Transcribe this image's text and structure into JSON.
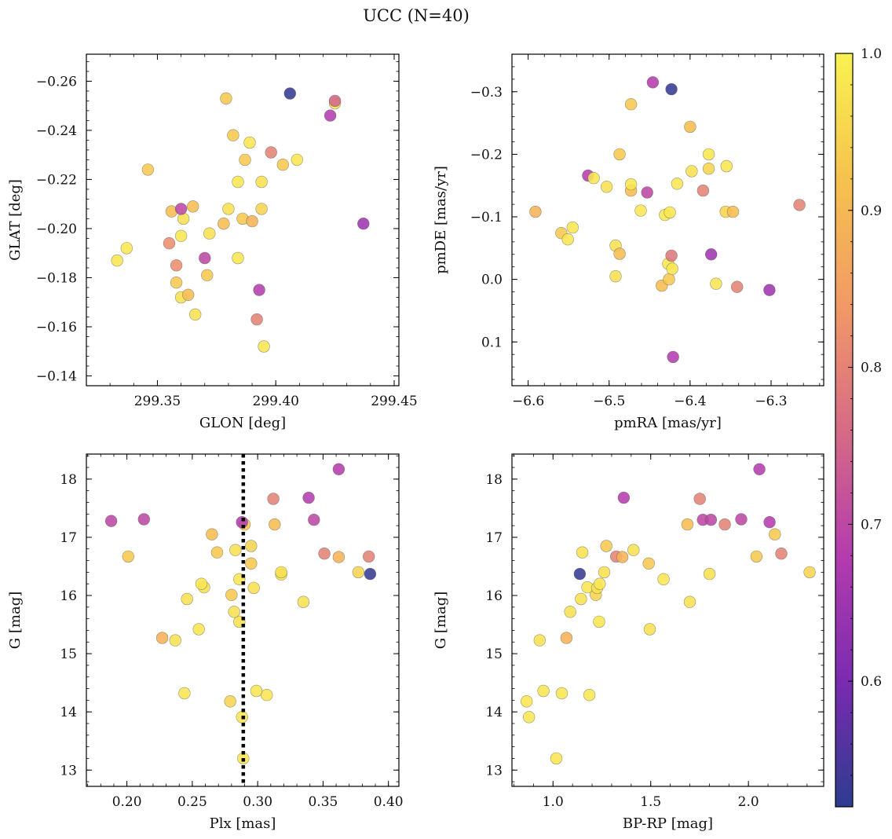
{
  "figure": {
    "title": "UCC (N=40)"
  },
  "colorbar": {
    "range": [
      0.52,
      1.0
    ],
    "ticks": [
      0.6,
      0.7,
      0.8,
      0.9,
      1.0
    ],
    "tick_labels": [
      "0.6",
      "0.7",
      "0.8",
      "0.9",
      "1.0"
    ],
    "stops": [
      "#2d3c8f",
      "#7a2bb0",
      "#b43cae",
      "#d66b85",
      "#f29a66",
      "#f6c24e",
      "#f8f252"
    ]
  },
  "chart_data": [
    {
      "type": "scatter",
      "xlabel": "GLON [deg]",
      "ylabel": "GLAT [deg]",
      "xlim": [
        299.32,
        299.452
      ],
      "ylim": [
        -0.271,
        -0.136
      ],
      "xticks": [
        299.35,
        299.4,
        299.45
      ],
      "xtick_labels": [
        "299.35",
        "299.40",
        "299.45"
      ],
      "yticks": [
        -0.26,
        -0.24,
        -0.22,
        -0.2,
        -0.18,
        -0.16,
        -0.14
      ],
      "ytick_labels": [
        "−0.26",
        "−0.24",
        "−0.22",
        "−0.20",
        "−0.18",
        "−0.16",
        "−0.14"
      ],
      "points": [
        {
          "x": 299.333,
          "y": -0.187,
          "c": 0.98
        },
        {
          "x": 299.337,
          "y": -0.192,
          "c": 0.98
        },
        {
          "x": 299.346,
          "y": -0.224,
          "c": 0.93
        },
        {
          "x": 299.355,
          "y": -0.194,
          "c": 0.82
        },
        {
          "x": 299.356,
          "y": -0.207,
          "c": 0.91
        },
        {
          "x": 299.358,
          "y": -0.178,
          "c": 0.93
        },
        {
          "x": 299.358,
          "y": -0.185,
          "c": 0.82
        },
        {
          "x": 299.36,
          "y": -0.172,
          "c": 0.97
        },
        {
          "x": 299.36,
          "y": -0.197,
          "c": 0.98
        },
        {
          "x": 299.361,
          "y": -0.204,
          "c": 0.97
        },
        {
          "x": 299.36,
          "y": -0.208,
          "c": 0.7
        },
        {
          "x": 299.363,
          "y": -0.173,
          "c": 0.91
        },
        {
          "x": 299.365,
          "y": -0.209,
          "c": 0.91
        },
        {
          "x": 299.366,
          "y": -0.165,
          "c": 0.97
        },
        {
          "x": 299.37,
          "y": -0.188,
          "c": 0.7
        },
        {
          "x": 299.371,
          "y": -0.181,
          "c": 0.93
        },
        {
          "x": 299.372,
          "y": -0.198,
          "c": 0.97
        },
        {
          "x": 299.378,
          "y": -0.202,
          "c": 0.91
        },
        {
          "x": 299.379,
          "y": -0.253,
          "c": 0.93
        },
        {
          "x": 299.38,
          "y": -0.208,
          "c": 0.97
        },
        {
          "x": 299.382,
          "y": -0.238,
          "c": 0.93
        },
        {
          "x": 299.384,
          "y": -0.188,
          "c": 0.98
        },
        {
          "x": 299.384,
          "y": -0.219,
          "c": 0.98
        },
        {
          "x": 299.386,
          "y": -0.204,
          "c": 0.93
        },
        {
          "x": 299.387,
          "y": -0.228,
          "c": 0.93
        },
        {
          "x": 299.389,
          "y": -0.235,
          "c": 0.98
        },
        {
          "x": 299.39,
          "y": -0.203,
          "c": 0.89
        },
        {
          "x": 299.392,
          "y": -0.163,
          "c": 0.8
        },
        {
          "x": 299.393,
          "y": -0.175,
          "c": 0.68
        },
        {
          "x": 299.394,
          "y": -0.208,
          "c": 0.95
        },
        {
          "x": 299.394,
          "y": -0.219,
          "c": 0.97
        },
        {
          "x": 299.395,
          "y": -0.152,
          "c": 0.98
        },
        {
          "x": 299.398,
          "y": -0.231,
          "c": 0.8
        },
        {
          "x": 299.403,
          "y": -0.226,
          "c": 0.93
        },
        {
          "x": 299.406,
          "y": -0.255,
          "c": 0.53
        },
        {
          "x": 299.409,
          "y": -0.228,
          "c": 0.98
        },
        {
          "x": 299.423,
          "y": -0.246,
          "c": 0.68
        },
        {
          "x": 299.425,
          "y": -0.251,
          "c": 0.98
        },
        {
          "x": 299.425,
          "y": -0.252,
          "c": 0.75
        },
        {
          "x": 299.437,
          "y": -0.202,
          "c": 0.65
        }
      ]
    },
    {
      "type": "scatter",
      "xlabel": "pmRA [mas/yr]",
      "ylabel": "pmDE [mas/yr]",
      "xlim": [
        -6.62,
        -6.235
      ],
      "ylim": [
        -0.36,
        0.17
      ],
      "xticks": [
        -6.6,
        -6.5,
        -6.4,
        -6.3
      ],
      "xtick_labels": [
        "−6.6",
        "−6.5",
        "−6.4",
        "−6.3"
      ],
      "yticks": [
        -0.3,
        -0.2,
        -0.1,
        0.0,
        0.1
      ],
      "ytick_labels": [
        "−0.3",
        "−0.2",
        "−0.1",
        "0.0",
        "0.1"
      ],
      "points": [
        {
          "x": -6.591,
          "y": -0.108,
          "c": 0.89
        },
        {
          "x": -6.559,
          "y": -0.074,
          "c": 0.93
        },
        {
          "x": -6.551,
          "y": -0.064,
          "c": 0.98
        },
        {
          "x": -6.545,
          "y": -0.083,
          "c": 0.98
        },
        {
          "x": -6.526,
          "y": -0.166,
          "c": 0.68
        },
        {
          "x": -6.519,
          "y": -0.162,
          "c": 0.98
        },
        {
          "x": -6.503,
          "y": -0.148,
          "c": 0.97
        },
        {
          "x": -6.492,
          "y": -0.005,
          "c": 0.97
        },
        {
          "x": -6.492,
          "y": -0.054,
          "c": 0.97
        },
        {
          "x": -6.487,
          "y": -0.041,
          "c": 0.91
        },
        {
          "x": -6.487,
          "y": -0.2,
          "c": 0.93
        },
        {
          "x": -6.473,
          "y": -0.142,
          "c": 0.91
        },
        {
          "x": -6.473,
          "y": -0.152,
          "c": 0.98
        },
        {
          "x": -6.473,
          "y": -0.28,
          "c": 0.93
        },
        {
          "x": -6.461,
          "y": -0.11,
          "c": 0.98
        },
        {
          "x": -6.453,
          "y": -0.139,
          "c": 0.7
        },
        {
          "x": -6.446,
          "y": -0.315,
          "c": 0.68
        },
        {
          "x": -6.435,
          "y": 0.01,
          "c": 0.91
        },
        {
          "x": -6.431,
          "y": -0.103,
          "c": 0.98
        },
        {
          "x": -6.427,
          "y": -0.025,
          "c": 0.98
        },
        {
          "x": -6.426,
          "y": 0.0,
          "c": 0.93
        },
        {
          "x": -6.425,
          "y": -0.107,
          "c": 0.98
        },
        {
          "x": -6.422,
          "y": -0.017,
          "c": 0.98
        },
        {
          "x": -6.423,
          "y": -0.038,
          "c": 0.78
        },
        {
          "x": -6.423,
          "y": -0.304,
          "c": 0.53
        },
        {
          "x": -6.421,
          "y": 0.124,
          "c": 0.68
        },
        {
          "x": -6.416,
          "y": -0.153,
          "c": 0.98
        },
        {
          "x": -6.398,
          "y": -0.173,
          "c": 0.97
        },
        {
          "x": -6.4,
          "y": -0.244,
          "c": 0.91
        },
        {
          "x": -6.384,
          "y": -0.142,
          "c": 0.8
        },
        {
          "x": -6.377,
          "y": -0.177,
          "c": 0.95
        },
        {
          "x": -6.377,
          "y": -0.2,
          "c": 0.98
        },
        {
          "x": -6.374,
          "y": -0.04,
          "c": 0.65
        },
        {
          "x": -6.368,
          "y": 0.007,
          "c": 0.98
        },
        {
          "x": -6.356,
          "y": -0.108,
          "c": 0.95
        },
        {
          "x": -6.355,
          "y": -0.181,
          "c": 0.98
        },
        {
          "x": -6.347,
          "y": -0.108,
          "c": 0.91
        },
        {
          "x": -6.342,
          "y": 0.012,
          "c": 0.8
        },
        {
          "x": -6.302,
          "y": 0.017,
          "c": 0.65
        },
        {
          "x": -6.265,
          "y": -0.119,
          "c": 0.8
        }
      ]
    },
    {
      "type": "scatter",
      "xlabel": "Plx [mas]",
      "ylabel": "G [mag]",
      "xlim": [
        0.169,
        0.408
      ],
      "ylim": [
        18.43,
        12.72
      ],
      "xticks": [
        0.2,
        0.25,
        0.3,
        0.35,
        0.4
      ],
      "xtick_labels": [
        "0.20",
        "0.25",
        "0.30",
        "0.35",
        "0.40"
      ],
      "yticks": [
        13,
        14,
        15,
        16,
        17,
        18
      ],
      "ytick_labels": [
        "13",
        "14",
        "15",
        "16",
        "17",
        "18"
      ],
      "vline": 0.289,
      "points": [
        {
          "x": 0.289,
          "y": 13.2,
          "c": 0.98
        },
        {
          "x": 0.288,
          "y": 13.91,
          "c": 0.98
        },
        {
          "x": 0.279,
          "y": 14.18,
          "c": 0.95
        },
        {
          "x": 0.244,
          "y": 14.32,
          "c": 0.98
        },
        {
          "x": 0.307,
          "y": 14.29,
          "c": 0.98
        },
        {
          "x": 0.299,
          "y": 14.36,
          "c": 0.98
        },
        {
          "x": 0.227,
          "y": 15.27,
          "c": 0.89
        },
        {
          "x": 0.237,
          "y": 15.23,
          "c": 0.97
        },
        {
          "x": 0.255,
          "y": 15.42,
          "c": 0.98
        },
        {
          "x": 0.286,
          "y": 15.55,
          "c": 0.97
        },
        {
          "x": 0.282,
          "y": 15.72,
          "c": 0.97
        },
        {
          "x": 0.246,
          "y": 15.94,
          "c": 0.97
        },
        {
          "x": 0.28,
          "y": 16.01,
          "c": 0.93
        },
        {
          "x": 0.335,
          "y": 15.89,
          "c": 0.97
        },
        {
          "x": 0.259,
          "y": 16.14,
          "c": 0.97
        },
        {
          "x": 0.257,
          "y": 16.2,
          "c": 0.98
        },
        {
          "x": 0.297,
          "y": 16.13,
          "c": 0.97
        },
        {
          "x": 0.286,
          "y": 16.28,
          "c": 0.98
        },
        {
          "x": 0.318,
          "y": 16.36,
          "c": 0.98
        },
        {
          "x": 0.318,
          "y": 16.4,
          "c": 0.97
        },
        {
          "x": 0.377,
          "y": 16.4,
          "c": 0.95
        },
        {
          "x": 0.386,
          "y": 16.37,
          "c": 0.53
        },
        {
          "x": 0.295,
          "y": 16.55,
          "c": 0.93
        },
        {
          "x": 0.201,
          "y": 16.67,
          "c": 0.93
        },
        {
          "x": 0.362,
          "y": 16.66,
          "c": 0.89
        },
        {
          "x": 0.385,
          "y": 16.67,
          "c": 0.8
        },
        {
          "x": 0.269,
          "y": 16.74,
          "c": 0.93
        },
        {
          "x": 0.351,
          "y": 16.72,
          "c": 0.8
        },
        {
          "x": 0.283,
          "y": 16.78,
          "c": 0.97
        },
        {
          "x": 0.295,
          "y": 16.85,
          "c": 0.95
        },
        {
          "x": 0.265,
          "y": 17.05,
          "c": 0.91
        },
        {
          "x": 0.29,
          "y": 17.22,
          "c": 0.93
        },
        {
          "x": 0.313,
          "y": 17.22,
          "c": 0.91
        },
        {
          "x": 0.288,
          "y": 17.26,
          "c": 0.68
        },
        {
          "x": 0.188,
          "y": 17.28,
          "c": 0.7
        },
        {
          "x": 0.213,
          "y": 17.31,
          "c": 0.7
        },
        {
          "x": 0.343,
          "y": 17.3,
          "c": 0.7
        },
        {
          "x": 0.312,
          "y": 17.66,
          "c": 0.8
        },
        {
          "x": 0.339,
          "y": 17.68,
          "c": 0.68
        },
        {
          "x": 0.362,
          "y": 18.17,
          "c": 0.68
        }
      ]
    },
    {
      "type": "scatter",
      "xlabel": "BP-RP [mag]",
      "ylabel": "G [mag]",
      "xlim": [
        0.79,
        2.385
      ],
      "ylim": [
        18.43,
        12.72
      ],
      "xticks": [
        1.0,
        1.5,
        2.0
      ],
      "xtick_labels": [
        "1.0",
        "1.5",
        "2.0"
      ],
      "yticks": [
        13,
        14,
        15,
        16,
        17,
        18
      ],
      "ytick_labels": [
        "13",
        "14",
        "15",
        "16",
        "17",
        "18"
      ],
      "points": [
        {
          "x": 1.017,
          "y": 13.2,
          "c": 0.98
        },
        {
          "x": 0.877,
          "y": 13.91,
          "c": 0.98
        },
        {
          "x": 0.865,
          "y": 14.18,
          "c": 0.98
        },
        {
          "x": 0.951,
          "y": 14.36,
          "c": 0.98
        },
        {
          "x": 1.045,
          "y": 14.32,
          "c": 0.98
        },
        {
          "x": 1.186,
          "y": 14.29,
          "c": 0.98
        },
        {
          "x": 0.932,
          "y": 15.23,
          "c": 0.97
        },
        {
          "x": 1.069,
          "y": 15.27,
          "c": 0.89
        },
        {
          "x": 1.495,
          "y": 15.42,
          "c": 0.97
        },
        {
          "x": 1.236,
          "y": 15.55,
          "c": 0.98
        },
        {
          "x": 1.088,
          "y": 15.72,
          "c": 0.97
        },
        {
          "x": 1.7,
          "y": 15.89,
          "c": 0.97
        },
        {
          "x": 1.143,
          "y": 15.94,
          "c": 0.97
        },
        {
          "x": 1.219,
          "y": 16.01,
          "c": 0.95
        },
        {
          "x": 1.176,
          "y": 16.14,
          "c": 0.98
        },
        {
          "x": 1.226,
          "y": 16.13,
          "c": 0.97
        },
        {
          "x": 1.239,
          "y": 16.2,
          "c": 0.98
        },
        {
          "x": 1.566,
          "y": 16.28,
          "c": 0.98
        },
        {
          "x": 1.262,
          "y": 16.4,
          "c": 0.97
        },
        {
          "x": 1.137,
          "y": 16.37,
          "c": 0.53
        },
        {
          "x": 1.801,
          "y": 16.37,
          "c": 0.97
        },
        {
          "x": 2.313,
          "y": 16.4,
          "c": 0.95
        },
        {
          "x": 1.49,
          "y": 16.55,
          "c": 0.93
        },
        {
          "x": 1.323,
          "y": 16.67,
          "c": 0.8
        },
        {
          "x": 1.355,
          "y": 16.66,
          "c": 0.89
        },
        {
          "x": 2.041,
          "y": 16.67,
          "c": 0.93
        },
        {
          "x": 2.168,
          "y": 16.72,
          "c": 0.8
        },
        {
          "x": 1.15,
          "y": 16.74,
          "c": 0.97
        },
        {
          "x": 1.412,
          "y": 16.78,
          "c": 0.97
        },
        {
          "x": 1.273,
          "y": 16.85,
          "c": 0.93
        },
        {
          "x": 2.135,
          "y": 17.05,
          "c": 0.93
        },
        {
          "x": 1.688,
          "y": 17.22,
          "c": 0.91
        },
        {
          "x": 1.879,
          "y": 17.22,
          "c": 0.8
        },
        {
          "x": 2.108,
          "y": 17.26,
          "c": 0.68
        },
        {
          "x": 1.767,
          "y": 17.3,
          "c": 0.7
        },
        {
          "x": 1.808,
          "y": 17.3,
          "c": 0.7
        },
        {
          "x": 1.963,
          "y": 17.31,
          "c": 0.7
        },
        {
          "x": 1.751,
          "y": 17.66,
          "c": 0.8
        },
        {
          "x": 1.362,
          "y": 17.68,
          "c": 0.68
        },
        {
          "x": 2.056,
          "y": 18.17,
          "c": 0.68
        }
      ]
    }
  ]
}
